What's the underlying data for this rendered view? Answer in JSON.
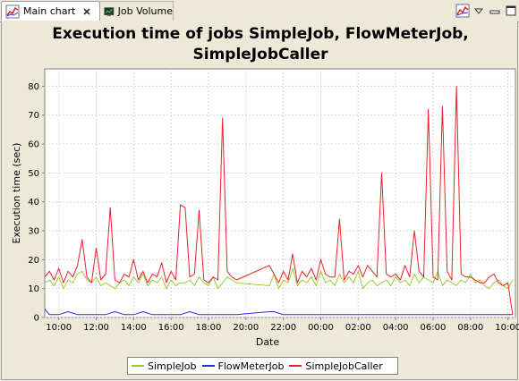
{
  "tabs": [
    {
      "label": "Main chart",
      "active": true,
      "icon": "line-chart-icon",
      "closable": true
    },
    {
      "label": "Job Volume",
      "active": false,
      "icon": "monitor-chart-icon",
      "closable": false
    }
  ],
  "view_actions": [
    {
      "icon": "chart-menu-icon"
    },
    {
      "icon": "view-menu-icon"
    },
    {
      "icon": "minimize-icon"
    },
    {
      "icon": "maximize-icon"
    }
  ],
  "chart_data": {
    "type": "line",
    "title": "Execution time of jobs SimpleJob, FlowMeterJob, SimpleJobCaller",
    "title_lines": [
      "Execution time of jobs SimpleJob, FlowMeterJob,",
      "SimpleJobCaller"
    ],
    "xlabel": "Date",
    "ylabel": "Execution time (sec)",
    "x_unit": "hours",
    "xlim": [
      9.25,
      10.4
    ],
    "ylim": [
      0,
      86
    ],
    "xticks": [
      "10:00",
      "12:00",
      "14:00",
      "16:00",
      "18:00",
      "20:00",
      "22:00",
      "00:00",
      "02:00",
      "04:00",
      "06:00",
      "08:00",
      "10:00"
    ],
    "yticks": [
      0,
      10,
      20,
      30,
      40,
      50,
      60,
      70,
      80
    ],
    "grid": true,
    "legend_position": "bottom",
    "series": [
      {
        "name": "SimpleJob",
        "color": "#99cc33",
        "x": [
          9.25,
          9.5,
          9.75,
          10,
          10.25,
          10.5,
          10.75,
          11,
          11.25,
          11.5,
          11.75,
          12,
          12.25,
          12.5,
          12.75,
          13,
          13.25,
          13.5,
          13.75,
          14,
          14.25,
          14.5,
          14.75,
          15,
          15.25,
          15.5,
          15.75,
          16,
          16.25,
          16.5,
          16.75,
          17,
          17.25,
          17.5,
          17.75,
          18,
          18.25,
          18.5,
          18.75,
          19,
          19.25,
          19.5,
          21.25,
          21.5,
          21.75,
          22,
          22.25,
          22.5,
          22.75,
          23,
          23.25,
          23.5,
          23.75,
          24,
          24.25,
          24.5,
          24.75,
          25,
          25.25,
          25.5,
          25.75,
          26,
          26.25,
          26.5,
          26.75,
          27,
          27.25,
          27.5,
          27.75,
          28,
          28.25,
          28.5,
          28.75,
          29,
          29.25,
          29.5,
          29.75,
          30,
          30.25,
          30.5,
          30.75,
          31,
          31.25,
          31.5,
          31.75,
          32,
          32.25,
          32.5,
          32.75,
          33,
          33.25,
          33.5,
          33.75,
          34,
          34.25
        ],
        "values": [
          12,
          13,
          11,
          14,
          10,
          13,
          12,
          15,
          16,
          13,
          12,
          14,
          11,
          12,
          11,
          10,
          12,
          13,
          11,
          14,
          12,
          15,
          11,
          13,
          12,
          14,
          10,
          13,
          11,
          12,
          12,
          13,
          11,
          14,
          12,
          11,
          14,
          10,
          12,
          14,
          13,
          12,
          11,
          15,
          10,
          13,
          12,
          17,
          11,
          13,
          12,
          14,
          11,
          16,
          12,
          13,
          11,
          15,
          12,
          14,
          12,
          16,
          10,
          12,
          13,
          11,
          12,
          13,
          11,
          14,
          12,
          13,
          11,
          15,
          12,
          14,
          13,
          12,
          16,
          11,
          13,
          12,
          11,
          13,
          12,
          15,
          12,
          13,
          11,
          10,
          12,
          13,
          11,
          10,
          13
        ]
      },
      {
        "name": "FlowMeterJob",
        "color": "#2b2bd9",
        "x": [
          9.25,
          9.5,
          9.75,
          10,
          10.5,
          11,
          11.5,
          12,
          12.5,
          13,
          13.5,
          14,
          14.5,
          15,
          15.5,
          16,
          16.5,
          17,
          17.5,
          18,
          18.5,
          19,
          19.5,
          21.25,
          21.5,
          22,
          22.5,
          23,
          23.5,
          24,
          24.5,
          25,
          25.5,
          26,
          26.5,
          27,
          27.5,
          28,
          28.5,
          29,
          29.5,
          30,
          30.5,
          31,
          31.5,
          32,
          32.5,
          33,
          33.5,
          34,
          34.25
        ],
        "values": [
          3,
          1,
          1,
          1,
          2,
          1,
          1,
          1,
          1,
          2,
          1,
          1,
          2,
          1,
          1,
          1,
          1,
          2,
          1,
          1,
          1,
          1,
          1,
          2,
          2,
          1,
          1,
          1,
          1,
          1,
          1,
          1,
          1,
          1,
          1,
          1,
          1,
          1,
          1,
          1,
          1,
          1,
          1,
          1,
          1,
          1,
          1,
          1,
          1,
          1,
          1
        ]
      },
      {
        "name": "SimpleJobCaller",
        "color": "#e8222a",
        "x": [
          9.25,
          9.5,
          9.75,
          10,
          10.25,
          10.5,
          10.75,
          11,
          11.25,
          11.5,
          11.75,
          12,
          12.25,
          12.5,
          12.75,
          13,
          13.25,
          13.5,
          13.75,
          14,
          14.25,
          14.5,
          14.75,
          15,
          15.25,
          15.5,
          15.75,
          16,
          16.25,
          16.5,
          16.75,
          17,
          17.25,
          17.5,
          17.75,
          18,
          18.25,
          18.5,
          18.75,
          19,
          19.25,
          19.5,
          21.25,
          21.5,
          21.75,
          22,
          22.25,
          22.5,
          22.75,
          23,
          23.25,
          23.5,
          23.75,
          24,
          24.25,
          24.5,
          24.75,
          25,
          25.25,
          25.5,
          25.75,
          26,
          26.25,
          26.5,
          26.75,
          27,
          27.25,
          27.5,
          27.75,
          28,
          28.25,
          28.5,
          28.75,
          29,
          29.25,
          29.5,
          29.75,
          30,
          30.25,
          30.5,
          30.75,
          31,
          31.25,
          31.5,
          31.75,
          32,
          32.25,
          32.5,
          32.75,
          33,
          33.25,
          33.5,
          33.75,
          34,
          34.25
        ],
        "values": [
          14,
          16,
          13,
          17,
          12,
          16,
          14,
          18,
          27,
          14,
          12,
          24,
          13,
          15,
          38,
          13,
          12,
          15,
          14,
          20,
          13,
          16,
          12,
          15,
          14,
          19,
          12,
          16,
          13,
          39,
          38,
          14,
          15,
          37,
          13,
          12,
          14,
          13,
          69,
          16,
          14,
          13,
          18,
          15,
          12,
          16,
          13,
          22,
          12,
          16,
          14,
          17,
          13,
          20,
          15,
          14,
          14,
          34,
          13,
          16,
          15,
          18,
          14,
          18,
          16,
          14,
          50,
          15,
          14,
          15,
          13,
          18,
          14,
          30,
          16,
          14,
          72,
          14,
          13,
          73,
          16,
          13,
          80,
          15,
          14,
          14,
          13,
          12,
          12,
          14,
          15,
          12,
          11,
          12,
          1
        ]
      }
    ]
  }
}
